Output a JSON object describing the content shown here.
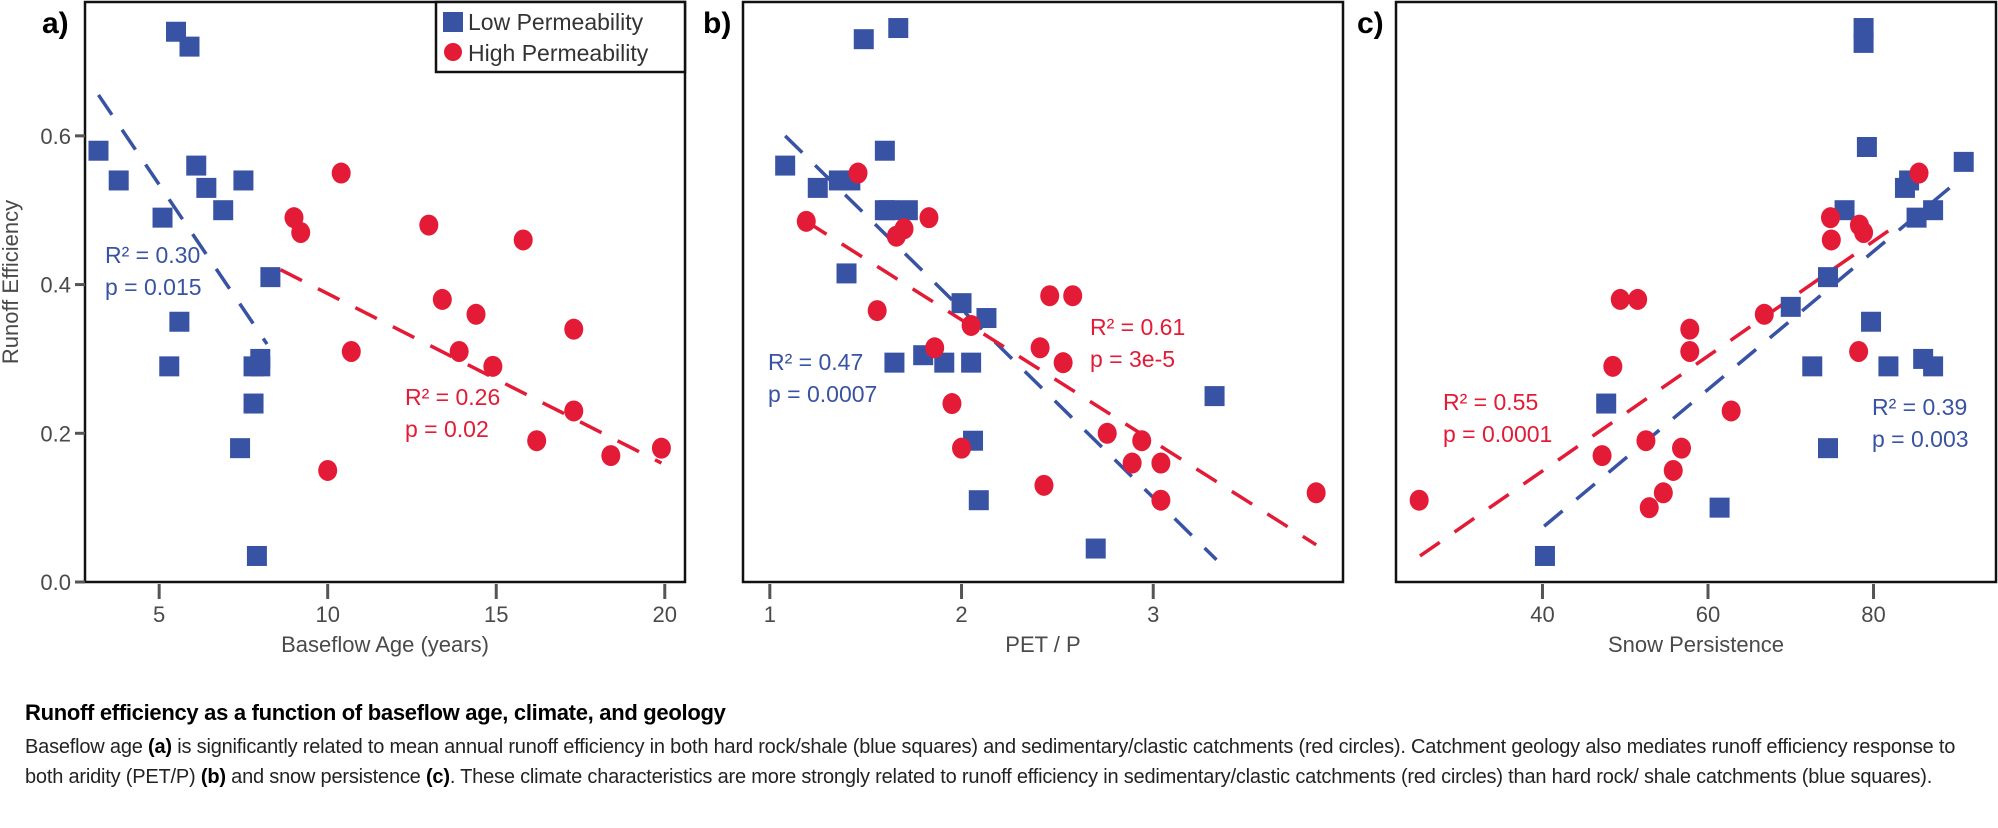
{
  "colors": {
    "low": "#3953a4",
    "high": "#e31b36",
    "axis": "#555555",
    "frame": "#111111"
  },
  "legend": {
    "low_label": "Low Permeability",
    "high_label": "High Permeability",
    "placement": "top-right of panel a"
  },
  "chart_data": [
    {
      "type": "scatter",
      "panel": "a)",
      "title": "",
      "xlabel": "Baseflow Age (years)",
      "ylabel": "Runoff Efficiency",
      "xlim": [
        2.8,
        20.6
      ],
      "ylim": [
        0.0,
        0.78
      ],
      "xticks": [
        5,
        10,
        15,
        20
      ],
      "yticks": [
        0.0,
        0.2,
        0.4,
        0.6
      ],
      "ytick_labels": [
        "0.0",
        "0.2",
        "0.4",
        "0.6"
      ],
      "grid": false,
      "series": [
        {
          "name": "Low Permeability",
          "marker": "square",
          "points": [
            [
              3.2,
              0.58
            ],
            [
              3.8,
              0.54
            ],
            [
              5.5,
              0.74
            ],
            [
              5.9,
              0.72
            ],
            [
              6.1,
              0.56
            ],
            [
              6.4,
              0.53
            ],
            [
              7.5,
              0.54
            ],
            [
              6.9,
              0.5
            ],
            [
              5.1,
              0.49
            ],
            [
              8.3,
              0.41
            ],
            [
              5.6,
              0.35
            ],
            [
              5.3,
              0.29
            ],
            [
              7.8,
              0.29
            ],
            [
              8.0,
              0.3
            ],
            [
              8.0,
              0.29
            ],
            [
              7.8,
              0.24
            ],
            [
              7.4,
              0.18
            ],
            [
              7.9,
              0.035
            ]
          ],
          "trend": [
            [
              3.2,
              0.655
            ],
            [
              8.2,
              0.32
            ]
          ],
          "annotation": [
            "R² = 0.30",
            "p = 0.015"
          ]
        },
        {
          "name": "High Permeability",
          "marker": "circle",
          "points": [
            [
              10.4,
              0.55
            ],
            [
              9.0,
              0.49
            ],
            [
              9.2,
              0.47
            ],
            [
              13.0,
              0.48
            ],
            [
              15.8,
              0.46
            ],
            [
              13.4,
              0.38
            ],
            [
              14.4,
              0.36
            ],
            [
              10.7,
              0.31
            ],
            [
              13.9,
              0.31
            ],
            [
              14.9,
              0.29
            ],
            [
              17.3,
              0.34
            ],
            [
              17.3,
              0.23
            ],
            [
              16.2,
              0.19
            ],
            [
              18.4,
              0.17
            ],
            [
              19.9,
              0.18
            ],
            [
              10.0,
              0.15
            ]
          ],
          "trend": [
            [
              8.6,
              0.42
            ],
            [
              19.9,
              0.16
            ]
          ],
          "annotation": [
            "R² = 0.26",
            "p = 0.02"
          ]
        }
      ]
    },
    {
      "type": "scatter",
      "panel": "b)",
      "title": "",
      "xlabel": "PET / P",
      "ylabel": "",
      "xlim": [
        0.86,
        3.99
      ],
      "ylim": [
        0.0,
        0.78
      ],
      "xticks": [
        1,
        2,
        3
      ],
      "yticks": [],
      "grid": false,
      "series": [
        {
          "name": "Low Permeability",
          "marker": "square",
          "points": [
            [
              1.49,
              0.73
            ],
            [
              1.67,
              0.745
            ],
            [
              1.08,
              0.56
            ],
            [
              1.25,
              0.53
            ],
            [
              1.36,
              0.54
            ],
            [
              1.42,
              0.54
            ],
            [
              1.6,
              0.58
            ],
            [
              1.6,
              0.5
            ],
            [
              1.62,
              0.5
            ],
            [
              1.72,
              0.5
            ],
            [
              1.4,
              0.415
            ],
            [
              2.0,
              0.375
            ],
            [
              2.13,
              0.355
            ],
            [
              1.65,
              0.295
            ],
            [
              1.8,
              0.305
            ],
            [
              1.91,
              0.295
            ],
            [
              2.05,
              0.295
            ],
            [
              2.06,
              0.19
            ],
            [
              2.09,
              0.11
            ],
            [
              3.32,
              0.25
            ],
            [
              2.7,
              0.045
            ]
          ],
          "trend": [
            [
              1.08,
              0.6
            ],
            [
              3.33,
              0.03
            ]
          ],
          "annotation": [
            "R² = 0.47",
            "p = 0.0007"
          ]
        },
        {
          "name": "High Permeability",
          "marker": "circle",
          "points": [
            [
              1.46,
              0.55
            ],
            [
              1.19,
              0.485
            ],
            [
              1.83,
              0.49
            ],
            [
              1.7,
              0.475
            ],
            [
              1.66,
              0.465
            ],
            [
              1.56,
              0.365
            ],
            [
              2.05,
              0.345
            ],
            [
              1.86,
              0.315
            ],
            [
              1.95,
              0.24
            ],
            [
              2.0,
              0.18
            ],
            [
              2.46,
              0.385
            ],
            [
              2.58,
              0.385
            ],
            [
              2.41,
              0.315
            ],
            [
              2.53,
              0.295
            ],
            [
              2.76,
              0.2
            ],
            [
              2.94,
              0.19
            ],
            [
              2.89,
              0.16
            ],
            [
              3.04,
              0.16
            ],
            [
              3.04,
              0.11
            ],
            [
              2.43,
              0.13
            ],
            [
              3.85,
              0.12
            ]
          ],
          "trend": [
            [
              1.19,
              0.485
            ],
            [
              3.85,
              0.05
            ]
          ],
          "annotation": [
            "R² = 0.61",
            "p = 3e-5"
          ]
        }
      ]
    },
    {
      "type": "scatter",
      "panel": "c)",
      "title": "",
      "xlabel": "Snow Persistence",
      "ylabel": "",
      "xlim": [
        22.3,
        94.8
      ],
      "ylim": [
        0.0,
        0.78
      ],
      "xticks": [
        40,
        60,
        80
      ],
      "yticks": [],
      "grid": false,
      "series": [
        {
          "name": "Low Permeability",
          "marker": "square",
          "points": [
            [
              78.8,
              0.745
            ],
            [
              78.8,
              0.725
            ],
            [
              79.2,
              0.585
            ],
            [
              90.9,
              0.565
            ],
            [
              84.3,
              0.54
            ],
            [
              83.8,
              0.53
            ],
            [
              76.5,
              0.5
            ],
            [
              85.2,
              0.49
            ],
            [
              87.2,
              0.5
            ],
            [
              74.5,
              0.41
            ],
            [
              70.0,
              0.37
            ],
            [
              79.7,
              0.35
            ],
            [
              72.6,
              0.29
            ],
            [
              81.8,
              0.29
            ],
            [
              86.0,
              0.3
            ],
            [
              87.2,
              0.29
            ],
            [
              47.7,
              0.24
            ],
            [
              74.5,
              0.18
            ],
            [
              61.4,
              0.1
            ],
            [
              40.3,
              0.035
            ]
          ],
          "trend": [
            [
              40.2,
              0.075
            ],
            [
              90.8,
              0.545
            ]
          ],
          "annotation": [
            "R² = 0.39",
            "p = 0.003"
          ]
        },
        {
          "name": "High Permeability",
          "marker": "circle",
          "points": [
            [
              85.5,
              0.55
            ],
            [
              74.8,
              0.49
            ],
            [
              74.9,
              0.46
            ],
            [
              78.3,
              0.48
            ],
            [
              78.8,
              0.47
            ],
            [
              66.8,
              0.36
            ],
            [
              49.4,
              0.38
            ],
            [
              51.5,
              0.38
            ],
            [
              57.8,
              0.34
            ],
            [
              57.8,
              0.31
            ],
            [
              48.5,
              0.29
            ],
            [
              78.2,
              0.31
            ],
            [
              62.8,
              0.23
            ],
            [
              52.5,
              0.19
            ],
            [
              56.8,
              0.18
            ],
            [
              47.2,
              0.17
            ],
            [
              55.8,
              0.15
            ],
            [
              54.6,
              0.12
            ],
            [
              52.9,
              0.1
            ],
            [
              25.1,
              0.11
            ]
          ],
          "trend": [
            [
              25.2,
              0.035
            ],
            [
              82.8,
              0.48
            ]
          ],
          "annotation": [
            "R² = 0.55",
            "p = 0.0001"
          ]
        }
      ]
    }
  ],
  "caption": {
    "title": "Runoff efficiency as a function of baseflow age, climate, and geology",
    "body_parts": [
      {
        "text": "Baseflow age ",
        "bold": false
      },
      {
        "text": "(a)",
        "bold": true
      },
      {
        "text": " is significantly related to mean annual runoff efficiency in both hard rock/shale (blue squares) and sedimentary/clastic catchments (red circles). Catchment geology also mediates runoff efficiency response to both aridity (PET/P) ",
        "bold": false
      },
      {
        "text": "(b)",
        "bold": true
      },
      {
        "text": " and snow persistence ",
        "bold": false
      },
      {
        "text": "(c)",
        "bold": true
      },
      {
        "text": ". These climate characteristics are more strongly related to runoff efficiency in sedimentary/clastic catchments (red circles) than hard rock/ shale catchments (blue squares).",
        "bold": false
      }
    ]
  }
}
